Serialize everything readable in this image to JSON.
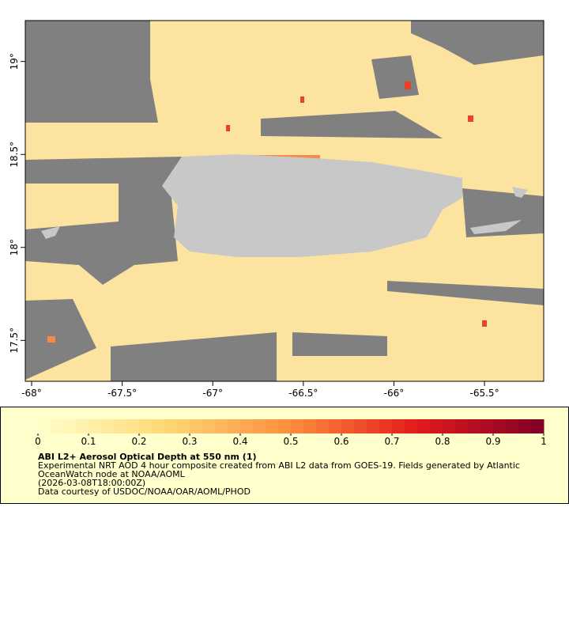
{
  "chart_data": {
    "type": "map",
    "title": "ABI L2+ Aerosol Optical Depth at 550 nm (1)",
    "description": [
      "Experimental NRT AOD 4 hour composite created from ABI L2 data from GOES-19. Fields generated by Atlantic",
      "OceanWatch node at NOAA/AOML",
      "(2026-03-08T18:00:00Z)",
      "Data courtesy of USDOC/NOAA/OAR/AOML/PHOD"
    ],
    "xlim": [
      -68.035,
      -65.173
    ],
    "ylim": [
      17.28,
      19.22
    ],
    "xticks": [
      {
        "value": -68,
        "label": "-68°"
      },
      {
        "value": -67.5,
        "label": "-67.5°"
      },
      {
        "value": -67,
        "label": "-67°"
      },
      {
        "value": -66.5,
        "label": "-66.5°"
      },
      {
        "value": -66,
        "label": "-66°"
      },
      {
        "value": -65.5,
        "label": "-65.5°"
      }
    ],
    "yticks": [
      {
        "value": 17.5,
        "label": "17.5°"
      },
      {
        "value": 18,
        "label": "18°"
      },
      {
        "value": 18.5,
        "label": "18.5°"
      },
      {
        "value": 19,
        "label": "19°"
      }
    ],
    "colorbar": {
      "clim": [
        0,
        1
      ],
      "ticks": [
        0,
        0.1,
        0.2,
        0.3,
        0.4,
        0.5,
        0.6,
        0.7,
        0.8,
        0.9,
        1
      ]
    }
  }
}
